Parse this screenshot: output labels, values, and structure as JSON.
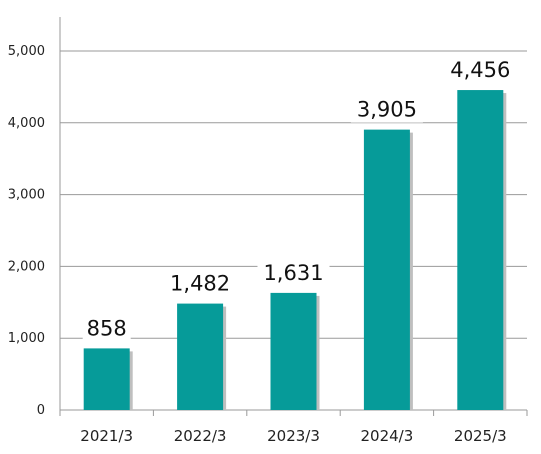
{
  "chart_data": {
    "type": "bar",
    "categories": [
      "2021/3",
      "2022/3",
      "2023/3",
      "2024/3",
      "2025/3"
    ],
    "values": [
      858,
      1482,
      1631,
      3905,
      4456
    ],
    "data_labels": [
      "858",
      "1,482",
      "1,631",
      "3,905",
      "4,456"
    ],
    "y_ticks": [
      0,
      1000,
      2000,
      3000,
      4000,
      5000
    ],
    "y_tick_labels": [
      "0",
      "1,000",
      "2,000",
      "3,000",
      "4,000",
      "5,000"
    ],
    "ylim": [
      0,
      5500
    ],
    "grid": true,
    "colors": {
      "bar": "#069b99",
      "bar_shadow": "#bfbfbf",
      "grid": "#9a9a9a"
    }
  }
}
